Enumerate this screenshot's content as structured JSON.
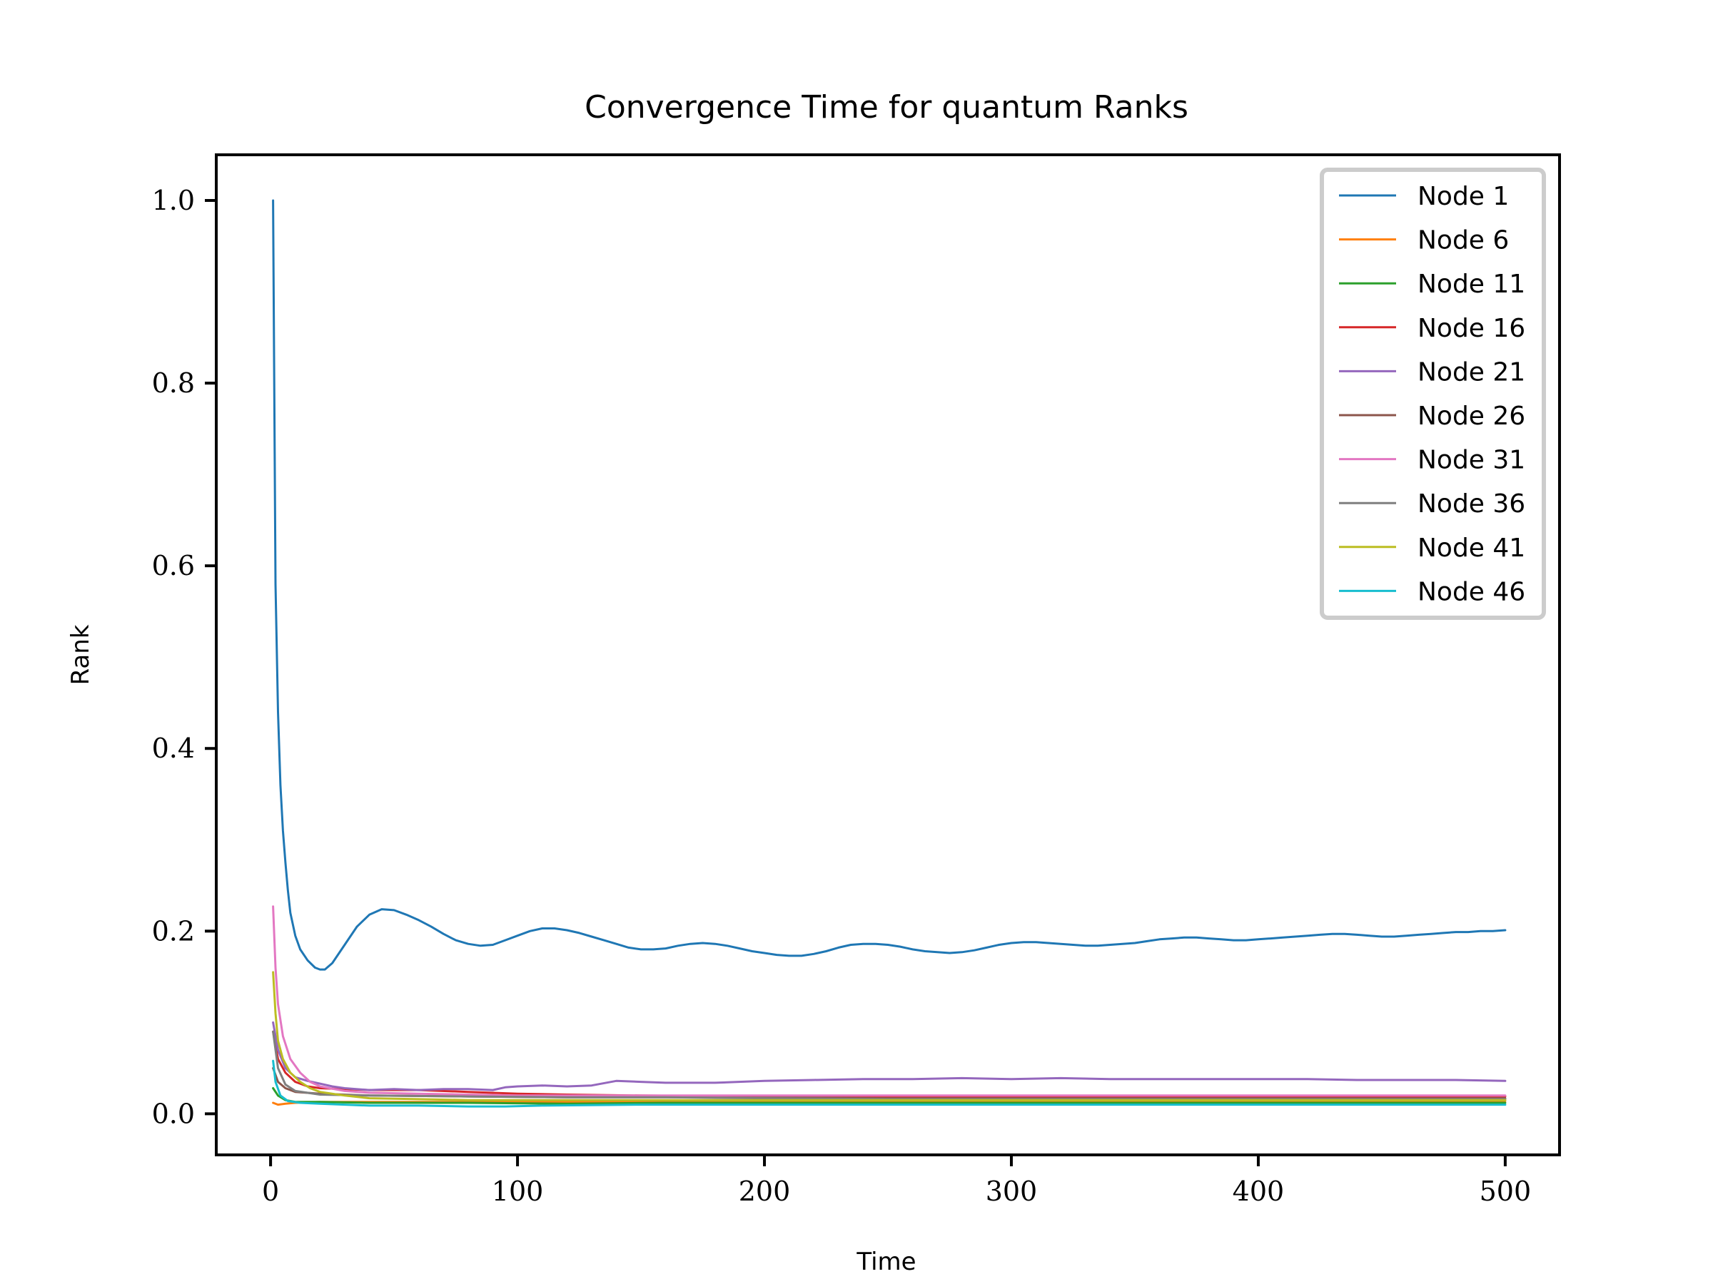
{
  "chart_data": {
    "type": "line",
    "title": "Convergence Time for quantum Ranks",
    "xlabel": "Time",
    "ylabel": "Rank",
    "xlim": [
      -22,
      522
    ],
    "ylim": [
      -0.045,
      1.05
    ],
    "xticks": [
      0,
      100,
      200,
      300,
      400,
      500
    ],
    "yticks": [
      0.0,
      0.2,
      0.4,
      0.6,
      0.8,
      1.0
    ],
    "xtick_labels": [
      "0",
      "100",
      "200",
      "300",
      "400",
      "500"
    ],
    "ytick_labels": [
      "0.0",
      "0.2",
      "0.4",
      "0.6",
      "0.8",
      "1.0"
    ],
    "grid": false,
    "legend_position": "top-right",
    "series": [
      {
        "name": "Node 1",
        "color": "#1f77b4",
        "points": [
          [
            1,
            1.0
          ],
          [
            2,
            0.58
          ],
          [
            3,
            0.44
          ],
          [
            4,
            0.36
          ],
          [
            5,
            0.31
          ],
          [
            6,
            0.275
          ],
          [
            7,
            0.245
          ],
          [
            8,
            0.22
          ],
          [
            10,
            0.195
          ],
          [
            12,
            0.18
          ],
          [
            15,
            0.168
          ],
          [
            18,
            0.16
          ],
          [
            20,
            0.158
          ],
          [
            22,
            0.158
          ],
          [
            25,
            0.165
          ],
          [
            30,
            0.185
          ],
          [
            35,
            0.205
          ],
          [
            40,
            0.218
          ],
          [
            45,
            0.224
          ],
          [
            50,
            0.223
          ],
          [
            55,
            0.218
          ],
          [
            60,
            0.212
          ],
          [
            65,
            0.205
          ],
          [
            70,
            0.197
          ],
          [
            75,
            0.19
          ],
          [
            80,
            0.186
          ],
          [
            85,
            0.184
          ],
          [
            90,
            0.185
          ],
          [
            95,
            0.19
          ],
          [
            100,
            0.195
          ],
          [
            105,
            0.2
          ],
          [
            110,
            0.203
          ],
          [
            115,
            0.203
          ],
          [
            120,
            0.201
          ],
          [
            125,
            0.198
          ],
          [
            130,
            0.194
          ],
          [
            135,
            0.19
          ],
          [
            140,
            0.186
          ],
          [
            145,
            0.182
          ],
          [
            150,
            0.18
          ],
          [
            155,
            0.18
          ],
          [
            160,
            0.181
          ],
          [
            165,
            0.184
          ],
          [
            170,
            0.186
          ],
          [
            175,
            0.187
          ],
          [
            180,
            0.186
          ],
          [
            185,
            0.184
          ],
          [
            190,
            0.181
          ],
          [
            195,
            0.178
          ],
          [
            200,
            0.176
          ],
          [
            205,
            0.174
          ],
          [
            210,
            0.173
          ],
          [
            215,
            0.173
          ],
          [
            220,
            0.175
          ],
          [
            225,
            0.178
          ],
          [
            230,
            0.182
          ],
          [
            235,
            0.185
          ],
          [
            240,
            0.186
          ],
          [
            245,
            0.186
          ],
          [
            250,
            0.185
          ],
          [
            255,
            0.183
          ],
          [
            260,
            0.18
          ],
          [
            265,
            0.178
          ],
          [
            270,
            0.177
          ],
          [
            275,
            0.176
          ],
          [
            280,
            0.177
          ],
          [
            285,
            0.179
          ],
          [
            290,
            0.182
          ],
          [
            295,
            0.185
          ],
          [
            300,
            0.187
          ],
          [
            305,
            0.188
          ],
          [
            310,
            0.188
          ],
          [
            315,
            0.187
          ],
          [
            320,
            0.186
          ],
          [
            325,
            0.185
          ],
          [
            330,
            0.184
          ],
          [
            335,
            0.184
          ],
          [
            340,
            0.185
          ],
          [
            345,
            0.186
          ],
          [
            350,
            0.187
          ],
          [
            355,
            0.189
          ],
          [
            360,
            0.191
          ],
          [
            365,
            0.192
          ],
          [
            370,
            0.193
          ],
          [
            375,
            0.193
          ],
          [
            380,
            0.192
          ],
          [
            385,
            0.191
          ],
          [
            390,
            0.19
          ],
          [
            395,
            0.19
          ],
          [
            400,
            0.191
          ],
          [
            405,
            0.192
          ],
          [
            410,
            0.193
          ],
          [
            415,
            0.194
          ],
          [
            420,
            0.195
          ],
          [
            425,
            0.196
          ],
          [
            430,
            0.197
          ],
          [
            435,
            0.197
          ],
          [
            440,
            0.196
          ],
          [
            445,
            0.195
          ],
          [
            450,
            0.194
          ],
          [
            455,
            0.194
          ],
          [
            460,
            0.195
          ],
          [
            465,
            0.196
          ],
          [
            470,
            0.197
          ],
          [
            475,
            0.198
          ],
          [
            480,
            0.199
          ],
          [
            485,
            0.199
          ],
          [
            490,
            0.2
          ],
          [
            495,
            0.2
          ],
          [
            500,
            0.201
          ]
        ]
      },
      {
        "name": "Node 6",
        "color": "#ff7f0e",
        "points": [
          [
            1,
            0.012
          ],
          [
            3,
            0.01
          ],
          [
            6,
            0.011
          ],
          [
            10,
            0.012
          ],
          [
            20,
            0.013
          ],
          [
            40,
            0.013
          ],
          [
            80,
            0.013
          ],
          [
            120,
            0.013
          ],
          [
            160,
            0.014
          ],
          [
            200,
            0.014
          ],
          [
            250,
            0.014
          ],
          [
            300,
            0.014
          ],
          [
            350,
            0.014
          ],
          [
            400,
            0.014
          ],
          [
            450,
            0.014
          ],
          [
            500,
            0.014
          ]
        ]
      },
      {
        "name": "Node 11",
        "color": "#2ca02c",
        "points": [
          [
            1,
            0.028
          ],
          [
            3,
            0.02
          ],
          [
            6,
            0.015
          ],
          [
            10,
            0.013
          ],
          [
            20,
            0.013
          ],
          [
            40,
            0.012
          ],
          [
            80,
            0.012
          ],
          [
            120,
            0.011
          ],
          [
            160,
            0.012
          ],
          [
            200,
            0.012
          ],
          [
            250,
            0.012
          ],
          [
            300,
            0.012
          ],
          [
            350,
            0.012
          ],
          [
            400,
            0.012
          ],
          [
            450,
            0.012
          ],
          [
            500,
            0.012
          ]
        ]
      },
      {
        "name": "Node 16",
        "color": "#d62728",
        "points": [
          [
            1,
            0.09
          ],
          [
            3,
            0.06
          ],
          [
            6,
            0.045
          ],
          [
            10,
            0.035
          ],
          [
            15,
            0.03
          ],
          [
            20,
            0.028
          ],
          [
            30,
            0.027
          ],
          [
            40,
            0.026
          ],
          [
            60,
            0.026
          ],
          [
            80,
            0.024
          ],
          [
            100,
            0.022
          ],
          [
            120,
            0.021
          ],
          [
            150,
            0.02
          ],
          [
            200,
            0.019
          ],
          [
            250,
            0.019
          ],
          [
            300,
            0.019
          ],
          [
            350,
            0.019
          ],
          [
            400,
            0.019
          ],
          [
            450,
            0.019
          ],
          [
            500,
            0.019
          ]
        ]
      },
      {
        "name": "Node 21",
        "color": "#9467bd",
        "points": [
          [
            1,
            0.1
          ],
          [
            3,
            0.07
          ],
          [
            6,
            0.05
          ],
          [
            10,
            0.04
          ],
          [
            15,
            0.036
          ],
          [
            20,
            0.033
          ],
          [
            25,
            0.03
          ],
          [
            30,
            0.028
          ],
          [
            40,
            0.026
          ],
          [
            50,
            0.027
          ],
          [
            60,
            0.026
          ],
          [
            70,
            0.027
          ],
          [
            80,
            0.027
          ],
          [
            90,
            0.026
          ],
          [
            95,
            0.029
          ],
          [
            100,
            0.03
          ],
          [
            110,
            0.031
          ],
          [
            120,
            0.03
          ],
          [
            130,
            0.031
          ],
          [
            140,
            0.036
          ],
          [
            150,
            0.035
          ],
          [
            160,
            0.034
          ],
          [
            180,
            0.034
          ],
          [
            200,
            0.036
          ],
          [
            220,
            0.037
          ],
          [
            240,
            0.038
          ],
          [
            260,
            0.038
          ],
          [
            280,
            0.039
          ],
          [
            300,
            0.038
          ],
          [
            320,
            0.039
          ],
          [
            340,
            0.038
          ],
          [
            360,
            0.038
          ],
          [
            380,
            0.038
          ],
          [
            400,
            0.038
          ],
          [
            420,
            0.038
          ],
          [
            440,
            0.037
          ],
          [
            460,
            0.037
          ],
          [
            480,
            0.037
          ],
          [
            500,
            0.036
          ]
        ]
      },
      {
        "name": "Node 26",
        "color": "#8c564b",
        "points": [
          [
            1,
            0.05
          ],
          [
            3,
            0.035
          ],
          [
            6,
            0.028
          ],
          [
            10,
            0.024
          ],
          [
            20,
            0.022
          ],
          [
            40,
            0.02
          ],
          [
            80,
            0.019
          ],
          [
            120,
            0.018
          ],
          [
            160,
            0.018
          ],
          [
            200,
            0.018
          ],
          [
            250,
            0.017
          ],
          [
            300,
            0.017
          ],
          [
            350,
            0.017
          ],
          [
            400,
            0.017
          ],
          [
            450,
            0.017
          ],
          [
            500,
            0.017
          ]
        ]
      },
      {
        "name": "Node 31",
        "color": "#e377c2",
        "points": [
          [
            1,
            0.227
          ],
          [
            2,
            0.16
          ],
          [
            3,
            0.12
          ],
          [
            5,
            0.085
          ],
          [
            8,
            0.06
          ],
          [
            12,
            0.045
          ],
          [
            16,
            0.035
          ],
          [
            20,
            0.03
          ],
          [
            30,
            0.025
          ],
          [
            40,
            0.023
          ],
          [
            60,
            0.022
          ],
          [
            80,
            0.021
          ],
          [
            100,
            0.02
          ],
          [
            150,
            0.02
          ],
          [
            200,
            0.02
          ],
          [
            250,
            0.02
          ],
          [
            300,
            0.02
          ],
          [
            350,
            0.02
          ],
          [
            400,
            0.02
          ],
          [
            450,
            0.02
          ],
          [
            500,
            0.02
          ]
        ]
      },
      {
        "name": "Node 36",
        "color": "#7f7f7f",
        "points": [
          [
            1,
            0.09
          ],
          [
            3,
            0.05
          ],
          [
            6,
            0.032
          ],
          [
            10,
            0.025
          ],
          [
            20,
            0.021
          ],
          [
            40,
            0.02
          ],
          [
            80,
            0.019
          ],
          [
            120,
            0.018
          ],
          [
            160,
            0.018
          ],
          [
            200,
            0.017
          ],
          [
            250,
            0.016
          ],
          [
            300,
            0.016
          ],
          [
            350,
            0.016
          ],
          [
            400,
            0.016
          ],
          [
            450,
            0.016
          ],
          [
            500,
            0.016
          ]
        ]
      },
      {
        "name": "Node 41",
        "color": "#bcbd22",
        "points": [
          [
            1,
            0.155
          ],
          [
            2,
            0.11
          ],
          [
            3,
            0.08
          ],
          [
            5,
            0.06
          ],
          [
            8,
            0.045
          ],
          [
            12,
            0.035
          ],
          [
            16,
            0.028
          ],
          [
            20,
            0.024
          ],
          [
            30,
            0.02
          ],
          [
            40,
            0.017
          ],
          [
            60,
            0.016
          ],
          [
            80,
            0.015
          ],
          [
            100,
            0.015
          ],
          [
            150,
            0.015
          ],
          [
            200,
            0.015
          ],
          [
            250,
            0.015
          ],
          [
            300,
            0.015
          ],
          [
            350,
            0.015
          ],
          [
            400,
            0.015
          ],
          [
            450,
            0.015
          ],
          [
            500,
            0.015
          ]
        ]
      },
      {
        "name": "Node 46",
        "color": "#17becf",
        "points": [
          [
            1,
            0.058
          ],
          [
            2,
            0.035
          ],
          [
            4,
            0.02
          ],
          [
            7,
            0.014
          ],
          [
            12,
            0.012
          ],
          [
            20,
            0.011
          ],
          [
            40,
            0.009
          ],
          [
            60,
            0.009
          ],
          [
            80,
            0.008
          ],
          [
            95,
            0.008
          ],
          [
            110,
            0.009
          ],
          [
            150,
            0.01
          ],
          [
            200,
            0.01
          ],
          [
            250,
            0.01
          ],
          [
            300,
            0.01
          ],
          [
            350,
            0.01
          ],
          [
            400,
            0.01
          ],
          [
            450,
            0.01
          ],
          [
            500,
            0.01
          ]
        ]
      }
    ]
  }
}
